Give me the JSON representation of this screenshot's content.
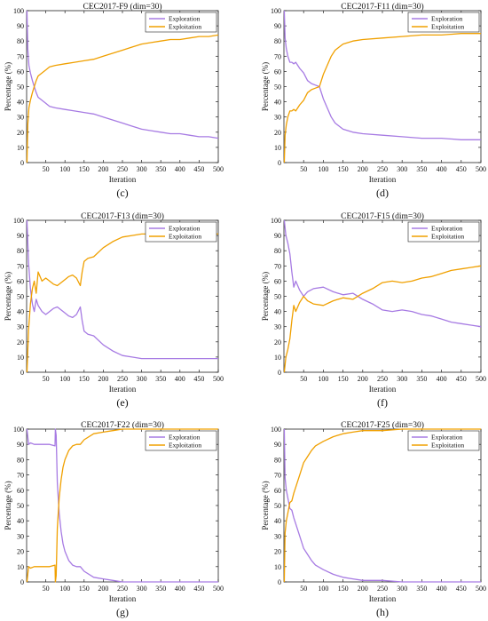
{
  "colors": {
    "exploration": "#a77be3",
    "exploitation": "#f0a000"
  },
  "chart_data": [
    {
      "type": "line",
      "title": "CEC2017-F9 (dim=30)",
      "xlabel": "Iteration",
      "ylabel": "Percentage (%)",
      "xlim": [
        0,
        500
      ],
      "ylim": [
        0,
        100
      ],
      "xticks": [
        50,
        100,
        150,
        200,
        250,
        300,
        350,
        400,
        450,
        500
      ],
      "yticks": [
        0,
        10,
        20,
        30,
        40,
        50,
        60,
        70,
        80,
        90,
        100
      ],
      "subcaption": "(c)",
      "legend_position": "top-right",
      "series": [
        {
          "name": "Exploration",
          "color": "#a77be3",
          "x": [
            1,
            3,
            6,
            10,
            15,
            20,
            25,
            30,
            40,
            50,
            60,
            75,
            100,
            125,
            150,
            175,
            200,
            225,
            250,
            275,
            300,
            325,
            350,
            375,
            400,
            425,
            450,
            475,
            500
          ],
          "y": [
            100,
            75,
            64,
            59,
            54,
            50,
            46,
            43,
            41,
            39,
            37,
            36,
            35,
            34,
            33,
            32,
            30,
            28,
            26,
            24,
            22,
            21,
            20,
            19,
            19,
            18,
            17,
            17,
            16
          ]
        },
        {
          "name": "Exploitation",
          "color": "#f0a000",
          "x": [
            1,
            3,
            6,
            10,
            15,
            20,
            25,
            30,
            40,
            50,
            60,
            75,
            100,
            125,
            150,
            175,
            200,
            225,
            250,
            275,
            300,
            325,
            350,
            375,
            400,
            425,
            450,
            475,
            500
          ],
          "y": [
            0,
            25,
            36,
            41,
            46,
            50,
            54,
            57,
            59,
            61,
            63,
            64,
            65,
            66,
            67,
            68,
            70,
            72,
            74,
            76,
            78,
            79,
            80,
            81,
            81,
            82,
            83,
            83,
            84
          ]
        }
      ]
    },
    {
      "type": "line",
      "title": "CEC2017-F11 (dim=30)",
      "xlabel": "Iteration",
      "ylabel": "Percentage (%)",
      "xlim": [
        0,
        500
      ],
      "ylim": [
        0,
        100
      ],
      "xticks": [
        50,
        100,
        150,
        200,
        250,
        300,
        350,
        400,
        450,
        500
      ],
      "yticks": [
        0,
        10,
        20,
        30,
        40,
        50,
        60,
        70,
        80,
        90,
        100
      ],
      "subcaption": "(d)",
      "legend_position": "top-right",
      "series": [
        {
          "name": "Exploration",
          "color": "#a77be3",
          "x": [
            1,
            3,
            6,
            10,
            15,
            20,
            25,
            30,
            40,
            50,
            60,
            70,
            80,
            90,
            100,
            110,
            120,
            130,
            140,
            150,
            175,
            200,
            250,
            300,
            350,
            400,
            450,
            500
          ],
          "y": [
            100,
            82,
            75,
            70,
            66,
            66,
            65,
            66,
            62,
            59,
            54,
            52,
            51,
            50,
            42,
            36,
            30,
            26,
            24,
            22,
            20,
            19,
            18,
            17,
            16,
            16,
            15,
            15
          ]
        },
        {
          "name": "Exploitation",
          "color": "#f0a000",
          "x": [
            1,
            3,
            6,
            10,
            15,
            20,
            25,
            30,
            40,
            50,
            60,
            70,
            80,
            90,
            100,
            110,
            120,
            130,
            140,
            150,
            175,
            200,
            250,
            300,
            350,
            400,
            450,
            500
          ],
          "y": [
            0,
            18,
            25,
            30,
            34,
            34,
            35,
            34,
            38,
            41,
            46,
            48,
            49,
            50,
            58,
            64,
            70,
            74,
            76,
            78,
            80,
            81,
            82,
            83,
            84,
            84,
            85,
            85
          ]
        }
      ]
    },
    {
      "type": "line",
      "title": "CEC2017-F13 (dim=30)",
      "xlabel": "Iteration",
      "ylabel": "Percentage (%)",
      "xlim": [
        0,
        500
      ],
      "ylim": [
        0,
        100
      ],
      "xticks": [
        50,
        100,
        150,
        200,
        250,
        300,
        350,
        400,
        450,
        500
      ],
      "yticks": [
        0,
        10,
        20,
        30,
        40,
        50,
        60,
        70,
        80,
        90,
        100
      ],
      "subcaption": "(e)",
      "legend_position": "top-right",
      "series": [
        {
          "name": "Exploration",
          "color": "#a77be3",
          "x": [
            1,
            5,
            10,
            15,
            20,
            25,
            30,
            40,
            50,
            60,
            70,
            80,
            90,
            100,
            110,
            120,
            130,
            140,
            145,
            150,
            160,
            175,
            200,
            225,
            250,
            275,
            300,
            350,
            400,
            450,
            500
          ],
          "y": [
            100,
            72,
            55,
            45,
            40,
            48,
            44,
            40,
            38,
            40,
            42,
            43,
            41,
            39,
            37,
            36,
            38,
            43,
            34,
            27,
            25,
            24,
            18,
            14,
            11,
            10,
            9,
            9,
            9,
            9,
            9
          ]
        },
        {
          "name": "Exploitation",
          "color": "#f0a000",
          "x": [
            1,
            5,
            10,
            15,
            20,
            25,
            30,
            40,
            50,
            60,
            70,
            80,
            90,
            100,
            110,
            120,
            130,
            140,
            145,
            150,
            160,
            175,
            200,
            225,
            250,
            275,
            300,
            350,
            400,
            450,
            500
          ],
          "y": [
            0,
            28,
            45,
            55,
            60,
            52,
            66,
            60,
            62,
            60,
            58,
            57,
            59,
            61,
            63,
            64,
            62,
            57,
            66,
            73,
            75,
            76,
            82,
            86,
            89,
            90,
            91,
            91,
            91,
            91,
            91
          ]
        }
      ]
    },
    {
      "type": "line",
      "title": "CEC2017-F15 (dim=30)",
      "xlabel": "Iteration",
      "ylabel": "Percentage (%)",
      "xlim": [
        0,
        500
      ],
      "ylim": [
        0,
        100
      ],
      "xticks": [
        50,
        100,
        150,
        200,
        250,
        300,
        350,
        400,
        450,
        500
      ],
      "yticks": [
        0,
        10,
        20,
        30,
        40,
        50,
        60,
        70,
        80,
        90,
        100
      ],
      "subcaption": "(f)",
      "legend_position": "top-right",
      "series": [
        {
          "name": "Exploration",
          "color": "#a77be3",
          "x": [
            1,
            5,
            10,
            15,
            20,
            25,
            30,
            40,
            50,
            60,
            75,
            100,
            125,
            150,
            175,
            200,
            225,
            250,
            275,
            300,
            325,
            350,
            375,
            400,
            425,
            450,
            475,
            500
          ],
          "y": [
            100,
            90,
            85,
            78,
            66,
            56,
            60,
            54,
            50,
            53,
            55,
            56,
            53,
            51,
            52,
            48,
            45,
            41,
            40,
            41,
            40,
            38,
            37,
            35,
            33,
            32,
            31,
            30
          ]
        },
        {
          "name": "Exploitation",
          "color": "#f0a000",
          "x": [
            1,
            5,
            10,
            15,
            20,
            25,
            30,
            40,
            50,
            60,
            75,
            100,
            125,
            150,
            175,
            200,
            225,
            250,
            275,
            300,
            325,
            350,
            375,
            400,
            425,
            450,
            475,
            500
          ],
          "y": [
            0,
            10,
            15,
            22,
            34,
            44,
            40,
            46,
            50,
            47,
            45,
            44,
            47,
            49,
            48,
            52,
            55,
            59,
            60,
            59,
            60,
            62,
            63,
            65,
            67,
            68,
            69,
            70
          ]
        }
      ]
    },
    {
      "type": "line",
      "title": "CEC2017-F22 (dim=30)",
      "xlabel": "Iteration",
      "ylabel": "Percentage (%)",
      "xlim": [
        0,
        500
      ],
      "ylim": [
        0,
        100
      ],
      "xticks": [
        50,
        100,
        150,
        200,
        250,
        300,
        350,
        400,
        450,
        500
      ],
      "yticks": [
        0,
        10,
        20,
        30,
        40,
        50,
        60,
        70,
        80,
        90,
        100
      ],
      "subcaption": "(g)",
      "legend_position": "top-right",
      "series": [
        {
          "name": "Exploration",
          "color": "#a77be3",
          "x": [
            1,
            5,
            10,
            20,
            40,
            60,
            74,
            75,
            77,
            80,
            85,
            90,
            95,
            100,
            110,
            120,
            130,
            140,
            150,
            175,
            200,
            225,
            250,
            300,
            350,
            400,
            450,
            500
          ],
          "y": [
            100,
            90,
            91,
            90,
            90,
            90,
            89,
            100,
            96,
            65,
            45,
            33,
            25,
            20,
            14,
            11,
            10,
            10,
            7,
            3,
            2,
            1,
            0,
            0,
            0,
            0,
            0,
            0
          ]
        },
        {
          "name": "Exploitation",
          "color": "#f0a000",
          "x": [
            1,
            5,
            10,
            20,
            40,
            60,
            74,
            75,
            77,
            80,
            85,
            90,
            95,
            100,
            110,
            120,
            130,
            140,
            150,
            175,
            200,
            225,
            250,
            300,
            350,
            400,
            450,
            500
          ],
          "y": [
            0,
            10,
            9,
            10,
            10,
            10,
            11,
            0,
            4,
            35,
            55,
            67,
            75,
            80,
            86,
            89,
            90,
            90,
            93,
            97,
            98,
            99,
            100,
            100,
            100,
            100,
            100,
            100
          ]
        }
      ]
    },
    {
      "type": "line",
      "title": "CEC2017-F25 (dim=30)",
      "xlabel": "Iteration",
      "ylabel": "Percentage (%)",
      "xlim": [
        0,
        500
      ],
      "ylim": [
        0,
        100
      ],
      "xticks": [
        50,
        100,
        150,
        200,
        250,
        300,
        350,
        400,
        450,
        500
      ],
      "yticks": [
        0,
        10,
        20,
        30,
        40,
        50,
        60,
        70,
        80,
        90,
        100
      ],
      "subcaption": "(h)",
      "legend_position": "top-right",
      "series": [
        {
          "name": "Exploration",
          "color": "#a77be3",
          "x": [
            1,
            3,
            6,
            10,
            15,
            20,
            25,
            30,
            40,
            50,
            60,
            70,
            80,
            100,
            125,
            150,
            175,
            200,
            250,
            300,
            350,
            400,
            450,
            500
          ],
          "y": [
            100,
            68,
            60,
            55,
            48,
            47,
            42,
            38,
            30,
            22,
            18,
            14,
            11,
            8,
            5,
            3,
            2,
            1,
            1,
            0,
            0,
            0,
            0,
            0
          ]
        },
        {
          "name": "Exploitation",
          "color": "#f0a000",
          "x": [
            1,
            3,
            6,
            10,
            15,
            20,
            25,
            30,
            40,
            50,
            60,
            70,
            80,
            100,
            125,
            150,
            175,
            200,
            250,
            300,
            350,
            400,
            450,
            500
          ],
          "y": [
            0,
            32,
            40,
            45,
            52,
            53,
            58,
            62,
            70,
            78,
            82,
            86,
            89,
            92,
            95,
            97,
            98,
            99,
            99,
            100,
            100,
            100,
            100,
            100
          ]
        }
      ]
    }
  ]
}
